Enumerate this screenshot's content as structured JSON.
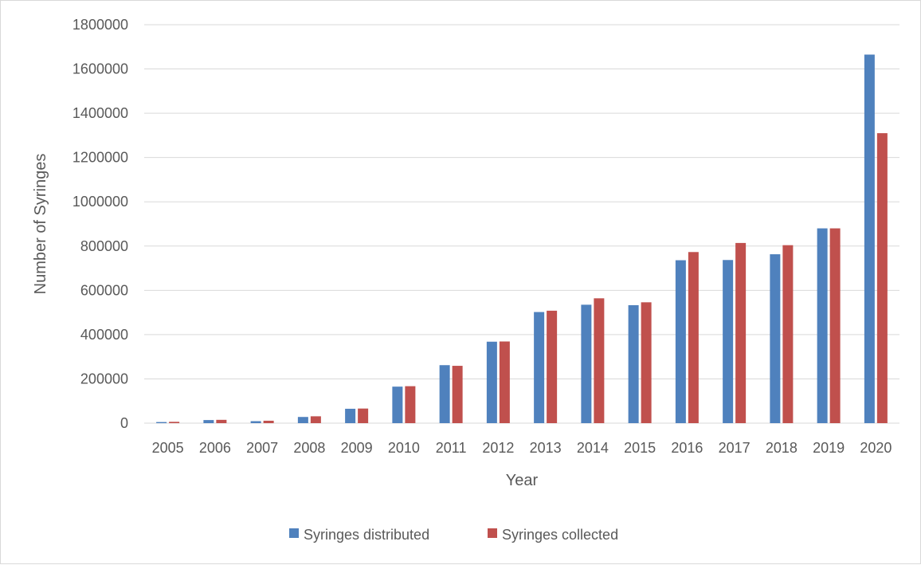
{
  "chart_data": {
    "type": "bar",
    "title": "",
    "xlabel": "Year",
    "ylabel": "Number of Syringes",
    "ylim": [
      0,
      1800000
    ],
    "yticks": [
      "0",
      "200000",
      "400000",
      "600000",
      "800000",
      "1000000",
      "1200000",
      "1400000",
      "1600000",
      "1800000"
    ],
    "grid": true,
    "legend_position": "bottom",
    "categories": [
      "2005",
      "2006",
      "2007",
      "2008",
      "2009",
      "2010",
      "2011",
      "2012",
      "2013",
      "2014",
      "2015",
      "2016",
      "2017",
      "2018",
      "2019",
      "2020"
    ],
    "series": [
      {
        "name": "Syringes distributed",
        "color": "#4f81bd",
        "values": [
          5000,
          14000,
          9000,
          28000,
          65000,
          165000,
          262000,
          368000,
          502000,
          535000,
          533000,
          736000,
          737000,
          763000,
          880000,
          1665000
        ]
      },
      {
        "name": "Syringes collected",
        "color": "#c0504d",
        "values": [
          6000,
          15000,
          11000,
          31000,
          66000,
          167000,
          259000,
          369000,
          508000,
          564000,
          546000,
          773000,
          814000,
          804000,
          880000,
          1310000
        ]
      }
    ]
  }
}
